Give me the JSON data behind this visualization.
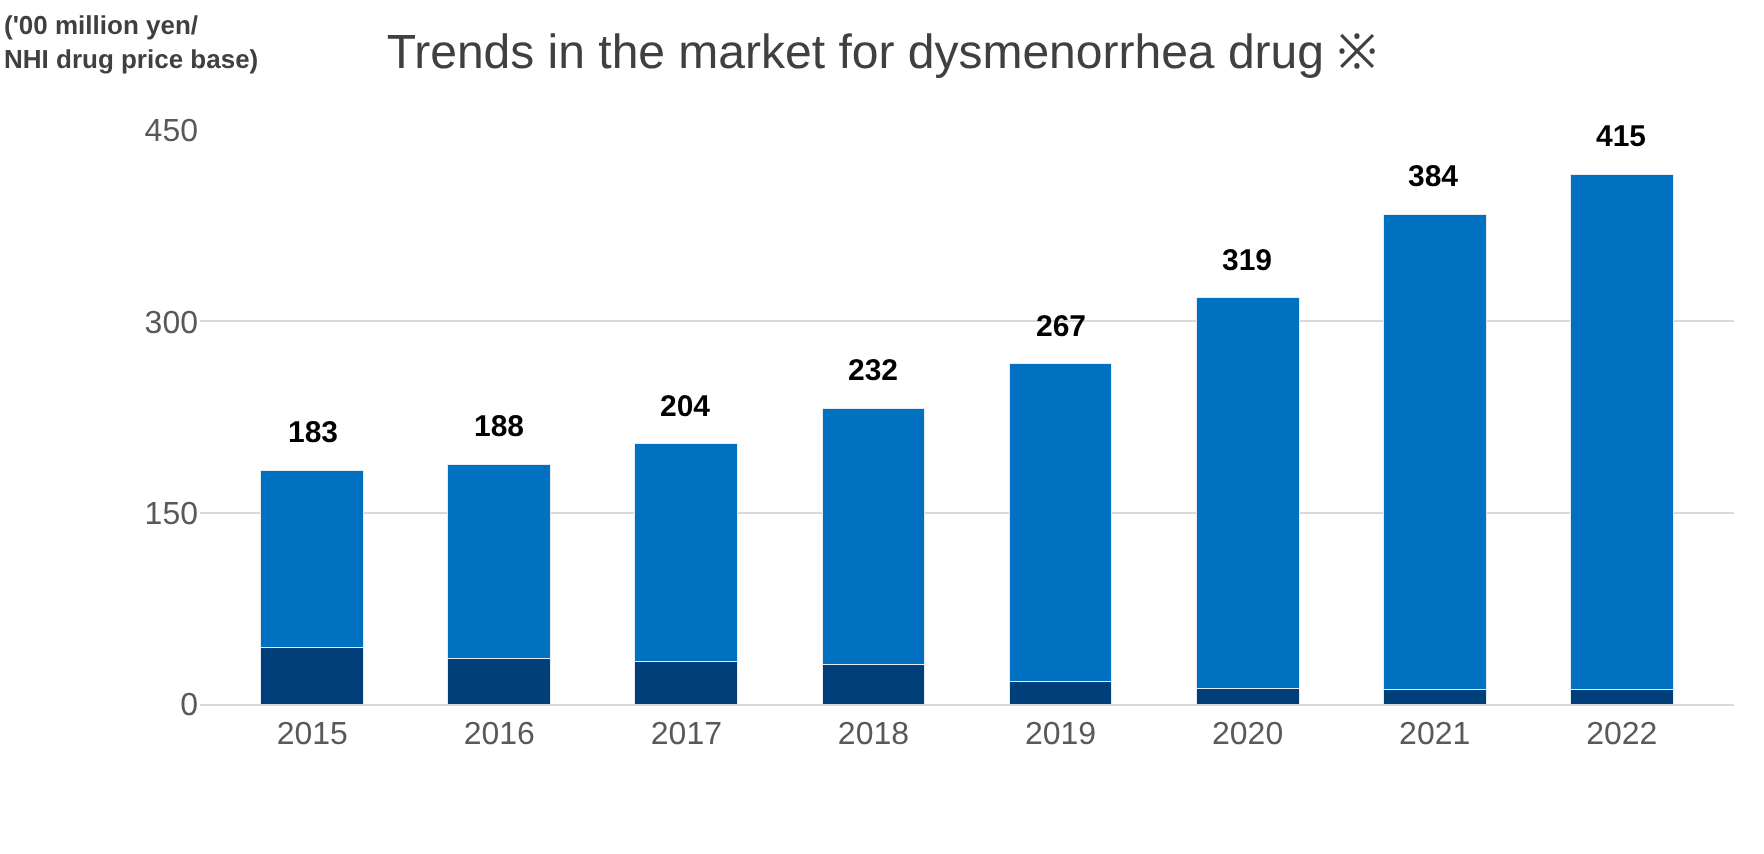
{
  "chart_data": {
    "type": "bar",
    "title": "Trends in the market for dysmenorrhea drug ※",
    "ylabel": "('00 million yen/\nNHI drug price base)",
    "categories": [
      "2015",
      "2016",
      "2017",
      "2018",
      "2019",
      "2020",
      "2021",
      "2022"
    ],
    "stacked": true,
    "series": [
      {
        "color": "#003f7a",
        "values": [
          44,
          36,
          33,
          31,
          18,
          12,
          11,
          11
        ]
      },
      {
        "color": "#0070c0",
        "values": [
          139,
          152,
          171,
          201,
          249,
          307,
          373,
          404
        ]
      }
    ],
    "totals": [
      "183",
      "188",
      "204",
      "232",
      "267",
      "319",
      "384",
      "415"
    ],
    "ylim": [
      0,
      450
    ],
    "yticks": [
      0,
      150,
      300,
      450
    ],
    "grid": "y"
  }
}
